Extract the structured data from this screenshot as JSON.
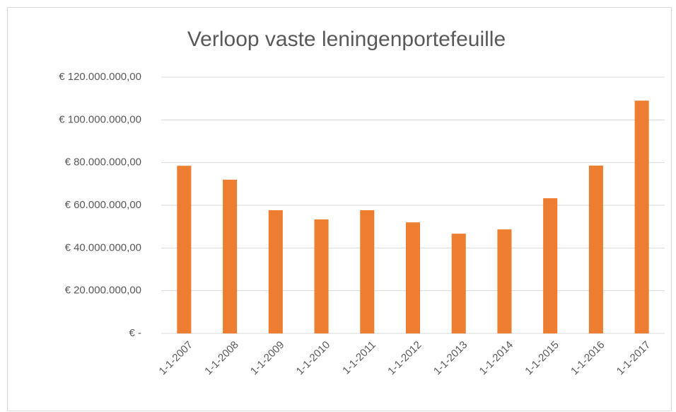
{
  "chart_data": {
    "type": "bar",
    "title": "Verloop vaste leningenportefeuille",
    "categories": [
      "1-1-2007",
      "1-1-2008",
      "1-1-2009",
      "1-1-2010",
      "1-1-2011",
      "1-1-2012",
      "1-1-2013",
      "1-1-2014",
      "1-1-2015",
      "1-1-2016",
      "1-1-2017"
    ],
    "values": [
      78500000,
      72000000,
      57700000,
      53400000,
      57700000,
      52000000,
      46700000,
      48700000,
      63300000,
      78600000,
      109000000
    ],
    "color": "#ed7d31",
    "ylim": [
      0,
      120000000
    ],
    "yticks": [
      {
        "value": 0,
        "label": "€ -"
      },
      {
        "value": 20000000,
        "label": "€ 20.000.000,00"
      },
      {
        "value": 40000000,
        "label": "€ 40.000.000,00"
      },
      {
        "value": 60000000,
        "label": "€ 60.000.000,00"
      },
      {
        "value": 80000000,
        "label": "€ 80.000.000,00"
      },
      {
        "value": 100000000,
        "label": "€ 100.000.000,00"
      },
      {
        "value": 120000000,
        "label": "€ 120.000.000,00"
      }
    ],
    "grid": true
  }
}
